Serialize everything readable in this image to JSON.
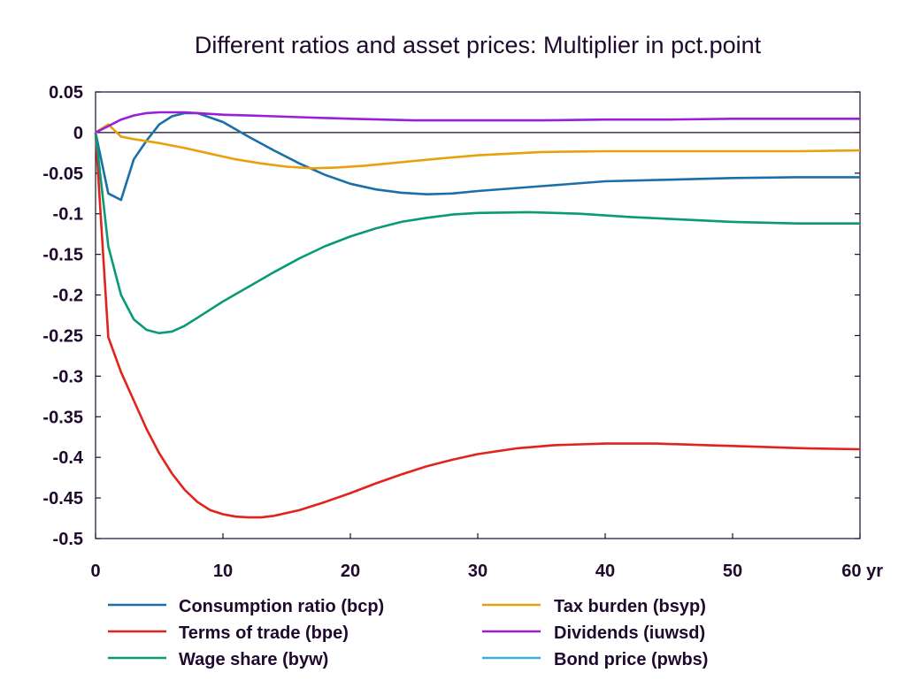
{
  "chart_data": {
    "type": "line",
    "title": "Different ratios and asset prices: Multiplier in pct.point",
    "x_unit": "yr",
    "xlim": [
      0,
      60
    ],
    "ylim": [
      -0.5,
      0.05
    ],
    "x_ticks": [
      0,
      10,
      20,
      30,
      40,
      50,
      60
    ],
    "x_tick_labels": [
      "0",
      "10",
      "20",
      "30",
      "40",
      "50",
      "60 yr"
    ],
    "y_ticks": [
      0.05,
      0,
      -0.05,
      -0.1,
      -0.15,
      -0.2,
      -0.25,
      -0.3,
      -0.35,
      -0.4,
      -0.45,
      -0.5
    ],
    "y_tick_labels": [
      "0.05",
      "0",
      "-0.05",
      "-0.1",
      "-0.15",
      "-0.2",
      "-0.25",
      "-0.3",
      "-0.35",
      "-0.4",
      "-0.45",
      "-0.5"
    ],
    "zero_line": true,
    "legend_position": "bottom",
    "series": [
      {
        "name": "Consumption ratio (bcp)",
        "color": "#1a6fa8",
        "x": [
          0,
          1,
          2,
          3,
          4,
          5,
          6,
          7,
          8,
          10,
          12,
          14,
          16,
          18,
          20,
          22,
          24,
          26,
          28,
          30,
          35,
          40,
          45,
          50,
          55,
          60
        ],
        "y": [
          0,
          -0.075,
          -0.083,
          -0.033,
          -0.01,
          0.01,
          0.02,
          0.024,
          0.024,
          0.013,
          -0.005,
          -0.022,
          -0.038,
          -0.052,
          -0.063,
          -0.07,
          -0.074,
          -0.076,
          -0.075,
          -0.072,
          -0.066,
          -0.06,
          -0.058,
          -0.056,
          -0.055,
          -0.055
        ]
      },
      {
        "name": "Terms of trade (bpe)",
        "color": "#e0231b",
        "x": [
          0,
          1,
          2,
          3,
          4,
          5,
          6,
          7,
          8,
          9,
          10,
          11,
          12,
          13,
          14,
          16,
          18,
          20,
          22,
          24,
          26,
          28,
          30,
          33,
          36,
          40,
          44,
          48,
          52,
          56,
          60
        ],
        "y": [
          0,
          -0.252,
          -0.295,
          -0.33,
          -0.365,
          -0.395,
          -0.42,
          -0.44,
          -0.455,
          -0.465,
          -0.47,
          -0.473,
          -0.474,
          -0.474,
          -0.472,
          -0.465,
          -0.455,
          -0.444,
          -0.432,
          -0.421,
          -0.411,
          -0.403,
          -0.396,
          -0.389,
          -0.385,
          -0.383,
          -0.383,
          -0.385,
          -0.387,
          -0.389,
          -0.39
        ]
      },
      {
        "name": "Wage share (byw)",
        "color": "#0a9a76",
        "x": [
          0,
          1,
          2,
          3,
          4,
          5,
          6,
          7,
          8,
          10,
          12,
          14,
          16,
          18,
          20,
          22,
          24,
          26,
          28,
          30,
          34,
          38,
          42,
          46,
          50,
          55,
          60
        ],
        "y": [
          0,
          -0.14,
          -0.2,
          -0.23,
          -0.243,
          -0.247,
          -0.245,
          -0.238,
          -0.228,
          -0.208,
          -0.19,
          -0.172,
          -0.155,
          -0.14,
          -0.128,
          -0.118,
          -0.11,
          -0.105,
          -0.101,
          -0.099,
          -0.098,
          -0.1,
          -0.104,
          -0.107,
          -0.11,
          -0.112,
          -0.112
        ]
      },
      {
        "name": "Tax burden (bsyp)",
        "color": "#e8a10c",
        "x": [
          0,
          1,
          2,
          3,
          5,
          7,
          9,
          11,
          13,
          15,
          17,
          19,
          21,
          23,
          25,
          27,
          30,
          35,
          40,
          45,
          50,
          55,
          60
        ],
        "y": [
          0,
          0.01,
          -0.005,
          -0.008,
          -0.013,
          -0.019,
          -0.026,
          -0.033,
          -0.038,
          -0.042,
          -0.044,
          -0.043,
          -0.041,
          -0.038,
          -0.035,
          -0.032,
          -0.028,
          -0.024,
          -0.023,
          -0.023,
          -0.023,
          -0.023,
          -0.022
        ]
      },
      {
        "name": "Dividends (iuwsd)",
        "color": "#9b1fd8",
        "x": [
          0,
          1,
          2,
          3,
          4,
          5,
          6,
          7,
          8,
          10,
          12,
          14,
          16,
          18,
          20,
          25,
          30,
          35,
          40,
          45,
          50,
          55,
          60
        ],
        "y": [
          0,
          0.008,
          0.016,
          0.021,
          0.024,
          0.025,
          0.025,
          0.025,
          0.024,
          0.022,
          0.021,
          0.02,
          0.019,
          0.018,
          0.017,
          0.015,
          0.015,
          0.015,
          0.016,
          0.016,
          0.017,
          0.017,
          0.017
        ]
      },
      {
        "name": "Bond price (pwbs)",
        "color": "#3aaee8",
        "x": [],
        "y": []
      }
    ]
  }
}
